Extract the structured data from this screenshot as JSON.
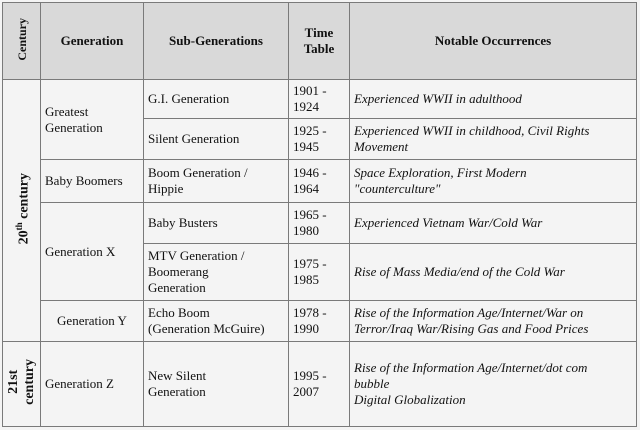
{
  "headers": {
    "century": "Century",
    "generation": "Generation",
    "sub_generations": "Sub-Generations",
    "time_table": "Time\nTable",
    "notable": "Notable Occurrences"
  },
  "centuries": {
    "c20_base": "20",
    "c20_sup": "th",
    "c20_rest": " century",
    "c21": "21st\ncentury"
  },
  "rows": [
    {
      "generation": "Greatest\nGeneration",
      "sub": "G.I. Generation",
      "time": "1901 -\n1924",
      "notable": "Experienced WWII in adulthood"
    },
    {
      "generation": "",
      "sub": "Silent Generation",
      "time": "1925 -\n1945",
      "notable": "Experienced WWII in childhood, Civil Rights\nMovement"
    },
    {
      "generation": "Baby Boomers",
      "sub": "Boom Generation /\nHippie",
      "time": "1946 -\n1964",
      "notable": "Space Exploration, First Modern\n\"counterculture\""
    },
    {
      "generation": "Generation X",
      "sub": "Baby Busters",
      "time": "1965 -\n1980",
      "notable": "Experienced Vietnam War/Cold War"
    },
    {
      "generation": "",
      "sub": "MTV Generation /\nBoomerang\nGeneration",
      "time": "1975 -\n1985",
      "notable": "Rise of Mass Media/end of the Cold War"
    },
    {
      "generation": "Generation Y",
      "sub": "Echo Boom\n(Generation McGuire)",
      "time": "1978 -\n1990",
      "notable": "Rise of the Information Age/Internet/War on\nTerror/Iraq War/Rising Gas and Food Prices"
    },
    {
      "generation": "Generation Z",
      "sub": "New Silent\nGeneration",
      "time": "1995 -\n2007",
      "notable": "Rise of the Information Age/Internet/dot com\nbubble\nDigital Globalization"
    }
  ]
}
